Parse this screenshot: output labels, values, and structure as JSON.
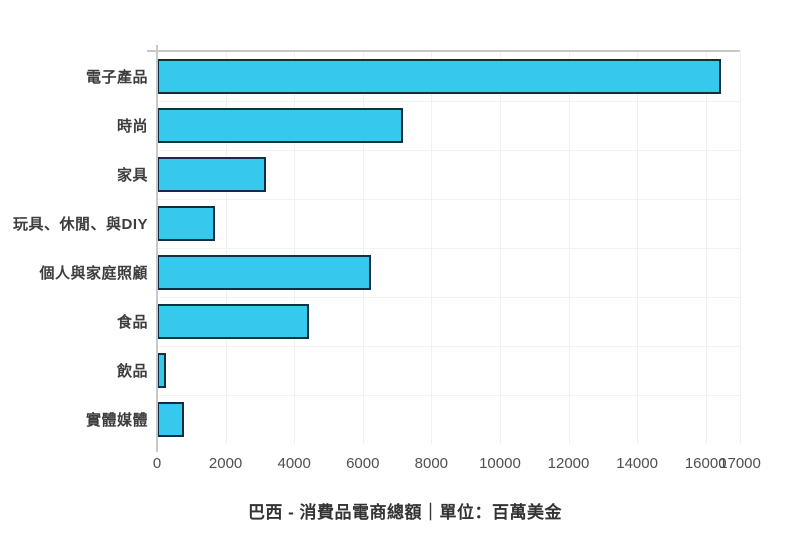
{
  "chart_data": {
    "type": "bar",
    "orientation": "horizontal",
    "title": "巴西 - 消費品電商總額｜單位：百萬美金",
    "categories": [
      "電子產品",
      "時尚",
      "家具",
      "玩具、休閒、與DIY",
      "個人與家庭照顧",
      "食品",
      "飲品",
      "實體媒體"
    ],
    "values": [
      16450,
      7170,
      3170,
      1690,
      6250,
      4440,
      250,
      790
    ],
    "xlabel": "",
    "ylabel": "",
    "xlim": [
      0,
      17000
    ],
    "xticks": [
      0,
      2000,
      4000,
      6000,
      8000,
      10000,
      12000,
      14000,
      16000,
      17000
    ],
    "grid": true,
    "legend": false,
    "colors": {
      "bar_fill": "#35c9ee",
      "bar_border": "#112f40",
      "axis_line": "#c8c8c8",
      "vertical_gridline": "#f0f0f0",
      "horizontal_gridline": "#f2f2f2",
      "category_label": "#3d3d3d",
      "tick_label": "#4f4f4f",
      "title": "#333333"
    }
  }
}
